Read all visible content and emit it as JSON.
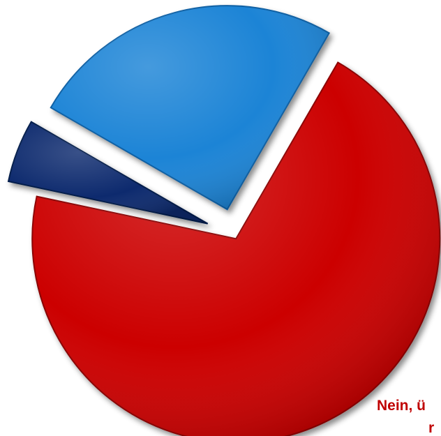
{
  "chart_data": {
    "type": "pie",
    "title": "",
    "start_angle_deg": 0,
    "direction": "clockwise",
    "slices": [
      {
        "label": "Nein, ü",
        "value": 70,
        "color": "#cc0000",
        "exploded": true
      },
      {
        "label": "",
        "value": 5,
        "color": "#0c2a6e",
        "exploded": true
      },
      {
        "label": "",
        "value": 25,
        "color": "#1a84d6",
        "exploded": true
      }
    ],
    "visible_labels": [
      "Nein, ü",
      "r"
    ]
  }
}
